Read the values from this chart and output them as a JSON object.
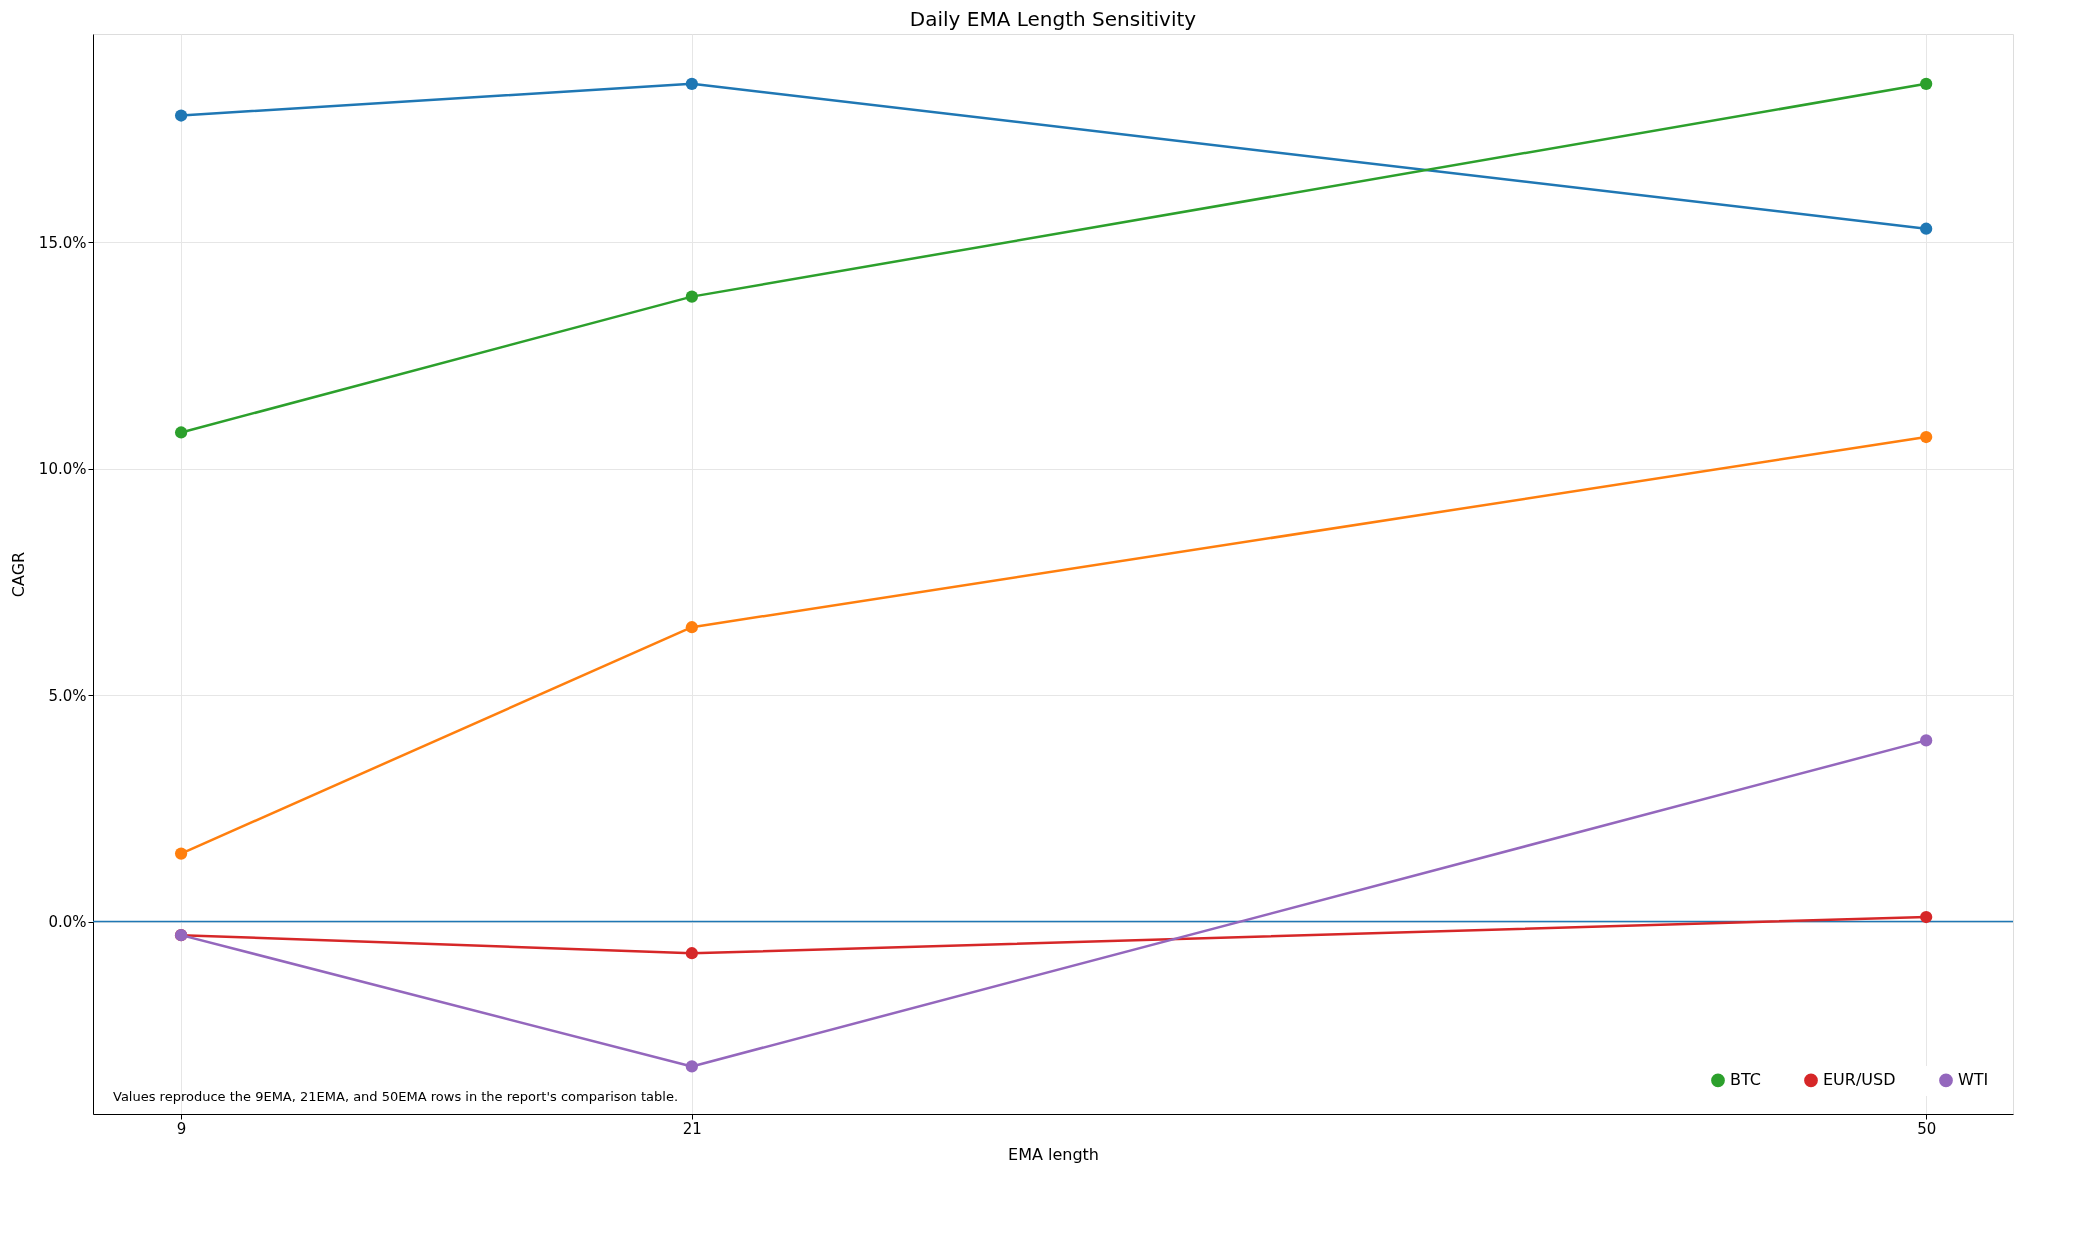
{
  "chart_data": {
    "type": "line",
    "title": "Daily EMA Length Sensitivity",
    "xlabel": "EMA length",
    "ylabel": "CAGR",
    "x": [
      9,
      21,
      50
    ],
    "series": [
      {
        "color": "#1f77b4",
        "values": [
          17.8,
          18.5,
          15.3
        ]
      },
      {
        "color": "#ff7f0e",
        "values": [
          1.5,
          6.5,
          10.7
        ]
      },
      {
        "name": "BTC",
        "color": "#2ca02c",
        "values": [
          10.8,
          13.8,
          18.5
        ]
      },
      {
        "name": "EUR/USD",
        "color": "#d62728",
        "values": [
          -0.3,
          -0.7,
          0.1
        ]
      },
      {
        "name": "WTI",
        "color": "#9467bd",
        "values": [
          -0.3,
          -3.2,
          4.0
        ]
      }
    ],
    "xlim": [
      6.93,
      52.04
    ],
    "xticks": [
      9,
      21,
      50
    ],
    "ylim": [
      -4.25,
      19.6
    ],
    "yticks": [
      {
        "value": 0,
        "label": "0.0%"
      },
      {
        "value": 5,
        "label": "5.0%"
      },
      {
        "value": 10,
        "label": "10.0%"
      },
      {
        "value": 15,
        "label": "15.0%"
      }
    ],
    "ref_lines": [
      {
        "axis": "y",
        "value": 0,
        "color": "#1f77b4"
      }
    ],
    "grid": true,
    "legend": "bottom right",
    "marker": "circle",
    "line_style": "solid",
    "annotations": [
      "Values reproduce the 9EMA, 21EMA, and 50EMA rows in the report's comparison table."
    ]
  }
}
